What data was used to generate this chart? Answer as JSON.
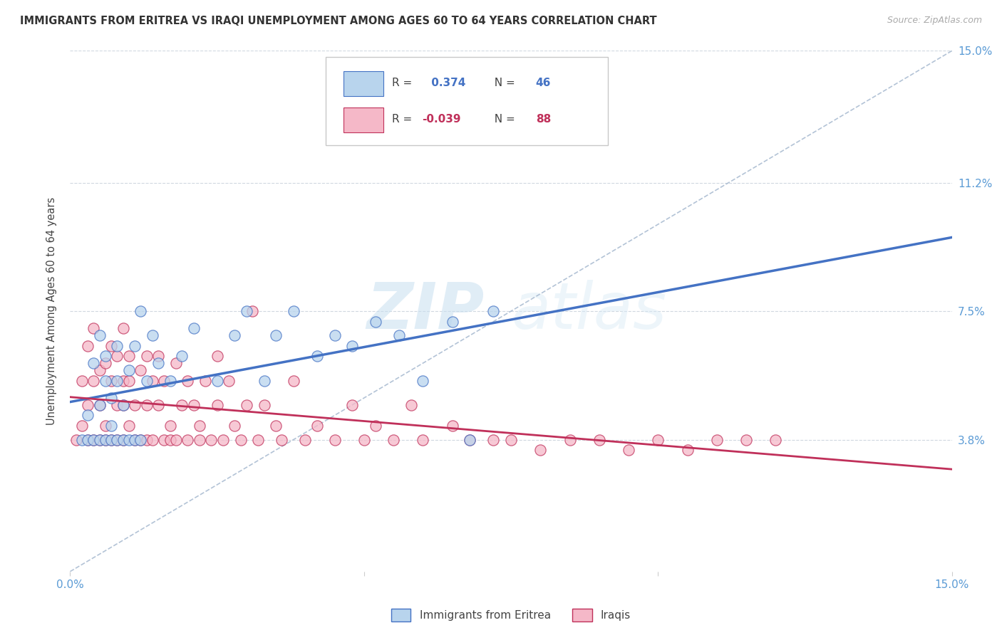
{
  "title": "IMMIGRANTS FROM ERITREA VS IRAQI UNEMPLOYMENT AMONG AGES 60 TO 64 YEARS CORRELATION CHART",
  "source": "Source: ZipAtlas.com",
  "ylabel": "Unemployment Among Ages 60 to 64 years",
  "xlim": [
    0.0,
    0.15
  ],
  "ylim": [
    0.0,
    0.15
  ],
  "ytick_positions": [
    0.038,
    0.075,
    0.112,
    0.15
  ],
  "ytick_labels": [
    "3.8%",
    "7.5%",
    "11.2%",
    "15.0%"
  ],
  "legend_r1_val": "0.374",
  "legend_n1_val": "46",
  "legend_r2_val": "-0.039",
  "legend_n2_val": "88",
  "color_eritrea": "#b8d4ed",
  "color_iraqi": "#f5b8c8",
  "trend_color_eritrea": "#4472c4",
  "trend_color_iraqi": "#c0305a",
  "diag_color": "#a0b4cc",
  "background_color": "#ffffff",
  "watermark_text": "ZIPatlas",
  "label_color": "#5b9bd5",
  "eritrea_x": [
    0.002,
    0.003,
    0.003,
    0.004,
    0.004,
    0.005,
    0.005,
    0.005,
    0.006,
    0.006,
    0.006,
    0.007,
    0.007,
    0.007,
    0.008,
    0.008,
    0.008,
    0.009,
    0.009,
    0.01,
    0.01,
    0.011,
    0.011,
    0.012,
    0.012,
    0.013,
    0.014,
    0.015,
    0.017,
    0.019,
    0.021,
    0.025,
    0.028,
    0.03,
    0.033,
    0.035,
    0.038,
    0.042,
    0.045,
    0.048,
    0.052,
    0.056,
    0.06,
    0.065,
    0.068,
    0.072
  ],
  "eritrea_y": [
    0.038,
    0.045,
    0.038,
    0.06,
    0.038,
    0.048,
    0.038,
    0.068,
    0.038,
    0.055,
    0.062,
    0.042,
    0.05,
    0.038,
    0.065,
    0.038,
    0.055,
    0.038,
    0.048,
    0.058,
    0.038,
    0.065,
    0.038,
    0.075,
    0.038,
    0.055,
    0.068,
    0.06,
    0.055,
    0.062,
    0.07,
    0.055,
    0.068,
    0.075,
    0.055,
    0.068,
    0.075,
    0.062,
    0.068,
    0.065,
    0.072,
    0.068,
    0.055,
    0.072,
    0.038,
    0.075
  ],
  "iraqi_x": [
    0.001,
    0.002,
    0.002,
    0.003,
    0.003,
    0.003,
    0.004,
    0.004,
    0.004,
    0.005,
    0.005,
    0.005,
    0.006,
    0.006,
    0.006,
    0.007,
    0.007,
    0.007,
    0.008,
    0.008,
    0.008,
    0.009,
    0.009,
    0.009,
    0.009,
    0.01,
    0.01,
    0.01,
    0.011,
    0.011,
    0.012,
    0.012,
    0.013,
    0.013,
    0.013,
    0.014,
    0.014,
    0.015,
    0.015,
    0.016,
    0.016,
    0.017,
    0.017,
    0.018,
    0.018,
    0.019,
    0.02,
    0.02,
    0.021,
    0.022,
    0.022,
    0.023,
    0.024,
    0.025,
    0.025,
    0.026,
    0.027,
    0.028,
    0.029,
    0.03,
    0.031,
    0.032,
    0.033,
    0.035,
    0.036,
    0.038,
    0.04,
    0.042,
    0.045,
    0.048,
    0.05,
    0.052,
    0.055,
    0.058,
    0.06,
    0.065,
    0.068,
    0.072,
    0.075,
    0.08,
    0.085,
    0.09,
    0.095,
    0.1,
    0.105,
    0.11,
    0.115,
    0.12
  ],
  "iraqi_y": [
    0.038,
    0.042,
    0.055,
    0.038,
    0.048,
    0.065,
    0.038,
    0.055,
    0.07,
    0.038,
    0.048,
    0.058,
    0.038,
    0.06,
    0.042,
    0.055,
    0.065,
    0.038,
    0.048,
    0.062,
    0.038,
    0.055,
    0.07,
    0.048,
    0.038,
    0.062,
    0.042,
    0.055,
    0.048,
    0.038,
    0.058,
    0.038,
    0.062,
    0.048,
    0.038,
    0.055,
    0.038,
    0.048,
    0.062,
    0.038,
    0.055,
    0.042,
    0.038,
    0.06,
    0.038,
    0.048,
    0.055,
    0.038,
    0.048,
    0.042,
    0.038,
    0.055,
    0.038,
    0.048,
    0.062,
    0.038,
    0.055,
    0.042,
    0.038,
    0.048,
    0.075,
    0.038,
    0.048,
    0.042,
    0.038,
    0.055,
    0.038,
    0.042,
    0.038,
    0.048,
    0.038,
    0.042,
    0.038,
    0.048,
    0.038,
    0.042,
    0.038,
    0.038,
    0.038,
    0.035,
    0.038,
    0.038,
    0.035,
    0.038,
    0.035,
    0.038,
    0.038,
    0.038
  ]
}
